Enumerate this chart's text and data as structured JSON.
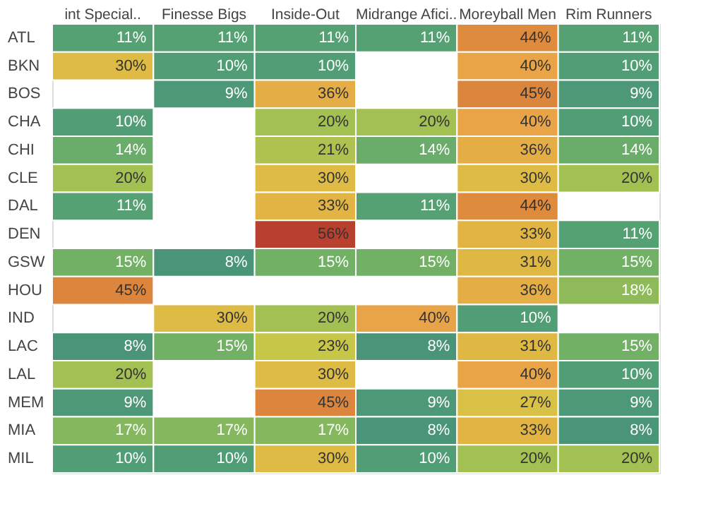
{
  "chart_data": {
    "type": "heatmap",
    "categories": [
      "int Special..",
      "Finesse Bigs",
      "Inside-Out",
      "Midrange Afici..",
      "Moreyball Men",
      "Rim Runners"
    ],
    "y_categories": [
      "ATL",
      "BKN",
      "BOS",
      "CHA",
      "CHI",
      "CLE",
      "DAL",
      "DEN",
      "GSW",
      "HOU",
      "IND",
      "LAC",
      "LAL",
      "MEM",
      "MIA",
      "MIL"
    ],
    "cells": [
      [
        11,
        11,
        11,
        11,
        44,
        11
      ],
      [
        30,
        10,
        10,
        null,
        40,
        10
      ],
      [
        null,
        9,
        36,
        null,
        45,
        9
      ],
      [
        10,
        null,
        20,
        20,
        40,
        10
      ],
      [
        14,
        null,
        21,
        14,
        36,
        14
      ],
      [
        20,
        null,
        30,
        null,
        30,
        20
      ],
      [
        11,
        null,
        33,
        11,
        44,
        null
      ],
      [
        null,
        null,
        56,
        null,
        33,
        11
      ],
      [
        15,
        8,
        15,
        15,
        31,
        15
      ],
      [
        45,
        null,
        null,
        null,
        36,
        18
      ],
      [
        null,
        30,
        20,
        40,
        10,
        null
      ],
      [
        8,
        15,
        23,
        8,
        31,
        15
      ],
      [
        20,
        null,
        30,
        null,
        40,
        10
      ],
      [
        9,
        null,
        45,
        9,
        27,
        9
      ],
      [
        17,
        17,
        17,
        8,
        33,
        8
      ],
      [
        10,
        10,
        30,
        10,
        20,
        20
      ]
    ],
    "cell_labels": [
      [
        "11%",
        "11%",
        "11%",
        "11%",
        "44%",
        "11%"
      ],
      [
        "30%",
        "10%",
        "10%",
        null,
        "40%",
        "10%"
      ],
      [
        null,
        "9%",
        "36%",
        null,
        "45%",
        "9%"
      ],
      [
        "10%",
        null,
        "20%",
        "20%",
        "40%",
        "10%"
      ],
      [
        "14%",
        null,
        "21%",
        "14%",
        "36%",
        "14%"
      ],
      [
        "20%",
        null,
        "30%",
        null,
        "30%",
        "20%"
      ],
      [
        "11%",
        null,
        "33%",
        "11%",
        "44%",
        null
      ],
      [
        null,
        null,
        "56%",
        null,
        "33%",
        "11%"
      ],
      [
        "15%",
        "8%",
        "15%",
        "15%",
        "31%",
        "15%"
      ],
      [
        "45%",
        null,
        null,
        null,
        "36%",
        "18%"
      ],
      [
        null,
        "30%",
        "20%",
        "40%",
        "10%",
        null
      ],
      [
        "8%",
        "15%",
        "23%",
        "8%",
        "31%",
        "15%"
      ],
      [
        "20%",
        null,
        "30%",
        null,
        "40%",
        "10%"
      ],
      [
        "9%",
        null,
        "45%",
        "9%",
        "27%",
        "9%"
      ],
      [
        "17%",
        "17%",
        "17%",
        "8%",
        "33%",
        "8%"
      ],
      [
        "10%",
        "10%",
        "30%",
        "10%",
        "20%",
        "20%"
      ]
    ],
    "colors": [
      "#4a9478",
      "#d3c847",
      "#e9a448",
      "#b8402e"
    ],
    "data_labels": true
  }
}
